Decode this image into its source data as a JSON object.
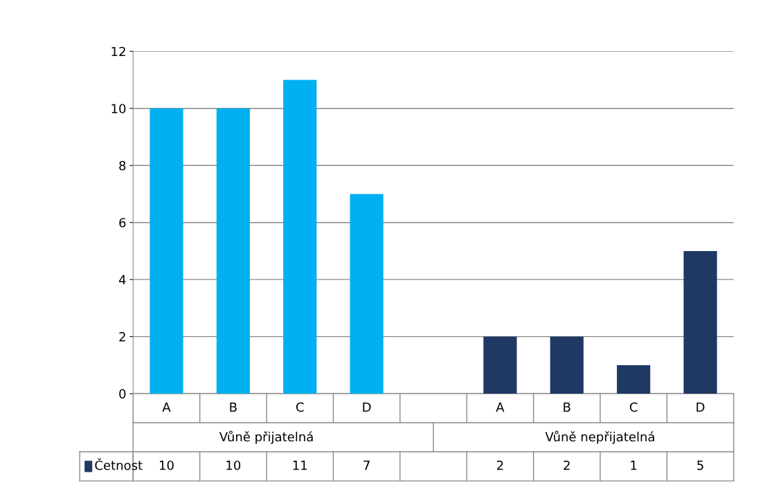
{
  "chart_data": {
    "type": "bar",
    "categories": [
      "A",
      "B",
      "C",
      "D",
      null,
      "A",
      "B",
      "C",
      "D"
    ],
    "series": [
      {
        "name": "Četnost",
        "color": "#1f3864",
        "colors": [
          "#00b0f0",
          "#00b0f0",
          "#00b0f0",
          "#00b0f0",
          "#00b0f0",
          "#1f3864",
          "#1f3864",
          "#1f3864",
          "#1f3864"
        ],
        "values": [
          10,
          10,
          11,
          7,
          null,
          2,
          2,
          1,
          5
        ]
      }
    ],
    "annotations": [
      "Vůně přijatelná",
      "Vůně nepřijatelná"
    ],
    "ylim": [
      0,
      12
    ],
    "yticks": [
      0,
      2,
      4,
      6,
      8,
      10,
      12
    ],
    "grid": "y",
    "data_labels": true
  }
}
